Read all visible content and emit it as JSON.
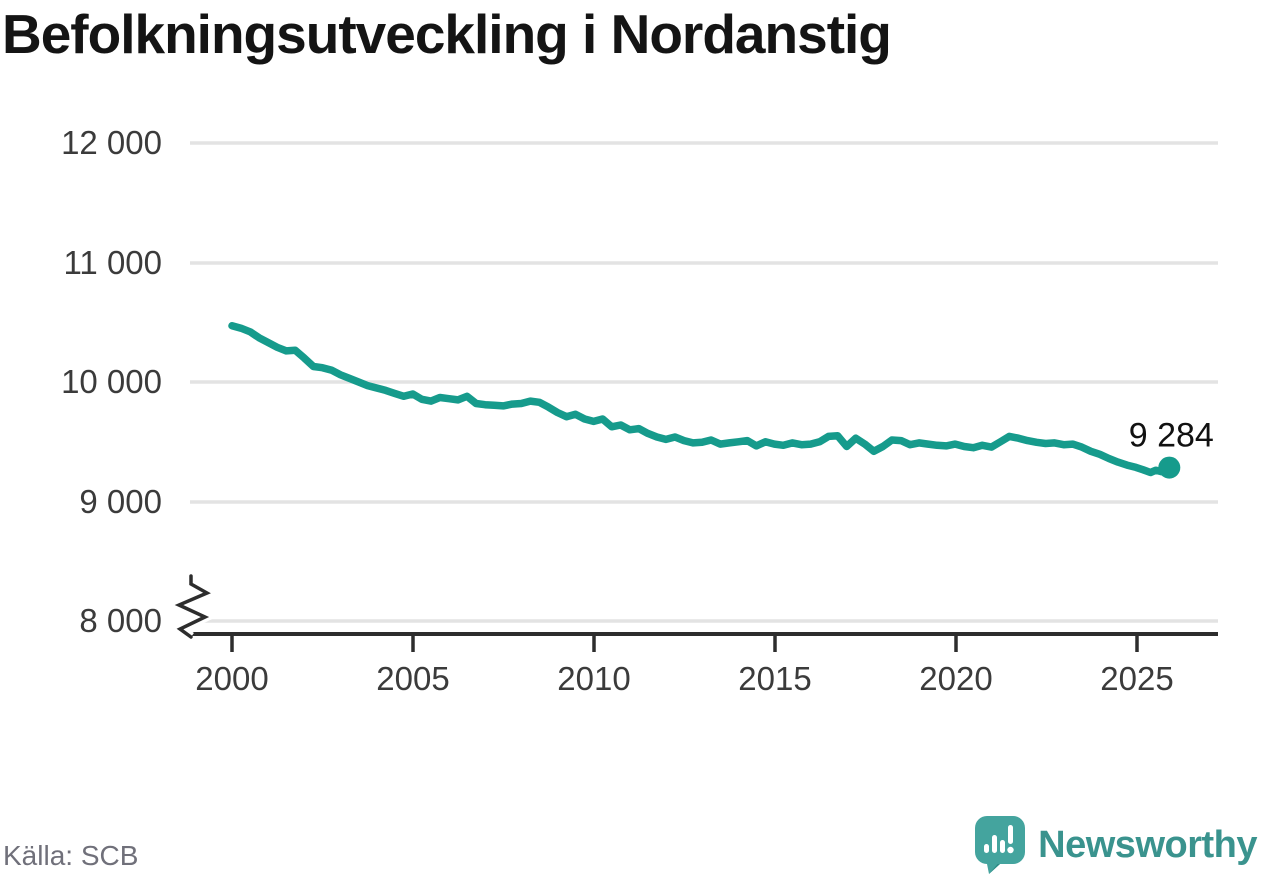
{
  "title": "Befolkningsutveckling i Nordanstig",
  "source": "Källa: SCB",
  "branding": {
    "wordmark": "Newsworthy"
  },
  "colors": {
    "line": "#169B8C",
    "grid": "#E3E3E3",
    "axis": "#2D2D2D",
    "tick_text": "#3B3B3B",
    "title_text": "#141414",
    "source_text": "#70707A",
    "brand_teal": "#3A938E",
    "brand_icon_teal": "#44A49E",
    "brand_icon_shade": "#2E8C86",
    "end_label_text": "#111111"
  },
  "chart_data": {
    "type": "line",
    "title": "Befolkningsutveckling i Nordanstig",
    "xlabel": "",
    "ylabel": "",
    "xlim": [
      1999.4,
      2027.3
    ],
    "ylim": [
      8000,
      12000
    ],
    "axis_break_at_bottom": true,
    "grid": "horizontal",
    "legend": "none",
    "xticks": [
      2000,
      2005,
      2010,
      2015,
      2020,
      2025
    ],
    "xtick_labels": [
      "2000",
      "2005",
      "2010",
      "2015",
      "2020",
      "2025"
    ],
    "yticks": [
      12000,
      11000,
      10000,
      9000,
      8000
    ],
    "ytick_labels": [
      "12 000",
      "11 000",
      "10 000",
      "9 000",
      "8 000"
    ],
    "end_label": "9 284",
    "end_value": 9284,
    "x": [
      2000.0,
      2000.25,
      2000.5,
      2000.75,
      2001.0,
      2001.25,
      2001.5,
      2001.75,
      2002.0,
      2002.25,
      2002.5,
      2002.75,
      2003.0,
      2003.25,
      2003.5,
      2003.75,
      2004.0,
      2004.25,
      2004.5,
      2004.75,
      2005.0,
      2005.25,
      2005.5,
      2005.75,
      2006.0,
      2006.25,
      2006.5,
      2006.75,
      2007.0,
      2007.25,
      2007.5,
      2007.75,
      2008.0,
      2008.25,
      2008.5,
      2008.75,
      2009.0,
      2009.25,
      2009.5,
      2009.75,
      2010.0,
      2010.25,
      2010.5,
      2010.75,
      2011.0,
      2011.25,
      2011.5,
      2011.75,
      2012.0,
      2012.25,
      2012.5,
      2012.75,
      2013.0,
      2013.25,
      2013.5,
      2013.75,
      2014.0,
      2014.25,
      2014.5,
      2014.75,
      2015.0,
      2015.25,
      2015.5,
      2015.75,
      2016.0,
      2016.25,
      2016.5,
      2016.75,
      2017.0,
      2017.25,
      2017.5,
      2017.75,
      2018.0,
      2018.25,
      2018.5,
      2018.75,
      2019.0,
      2019.25,
      2019.5,
      2019.75,
      2020.0,
      2020.25,
      2020.5,
      2020.75,
      2021.0,
      2021.25,
      2021.5,
      2021.75,
      2022.0,
      2022.25,
      2022.5,
      2022.75,
      2023.0,
      2023.25,
      2023.5,
      2023.75,
      2024.0,
      2024.25,
      2024.5,
      2024.75,
      2025.0,
      2025.2,
      2025.4,
      2025.55,
      2025.7,
      2025.8,
      2025.92
    ],
    "values": [
      10470,
      10450,
      10420,
      10370,
      10330,
      10290,
      10260,
      10265,
      10200,
      10130,
      10120,
      10100,
      10060,
      10030,
      10000,
      9970,
      9950,
      9930,
      9905,
      9880,
      9900,
      9855,
      9840,
      9870,
      9860,
      9850,
      9880,
      9820,
      9810,
      9805,
      9800,
      9815,
      9820,
      9840,
      9830,
      9790,
      9745,
      9710,
      9730,
      9690,
      9670,
      9690,
      9625,
      9640,
      9600,
      9610,
      9570,
      9540,
      9520,
      9540,
      9510,
      9490,
      9495,
      9515,
      9480,
      9490,
      9500,
      9510,
      9465,
      9500,
      9480,
      9470,
      9490,
      9475,
      9480,
      9500,
      9545,
      9550,
      9460,
      9530,
      9480,
      9420,
      9460,
      9515,
      9510,
      9475,
      9490,
      9480,
      9470,
      9465,
      9480,
      9460,
      9450,
      9470,
      9455,
      9500,
      9545,
      9530,
      9510,
      9495,
      9485,
      9490,
      9475,
      9480,
      9455,
      9420,
      9395,
      9360,
      9330,
      9305,
      9285,
      9265,
      9243,
      9262,
      9250,
      9260,
      9284
    ]
  }
}
